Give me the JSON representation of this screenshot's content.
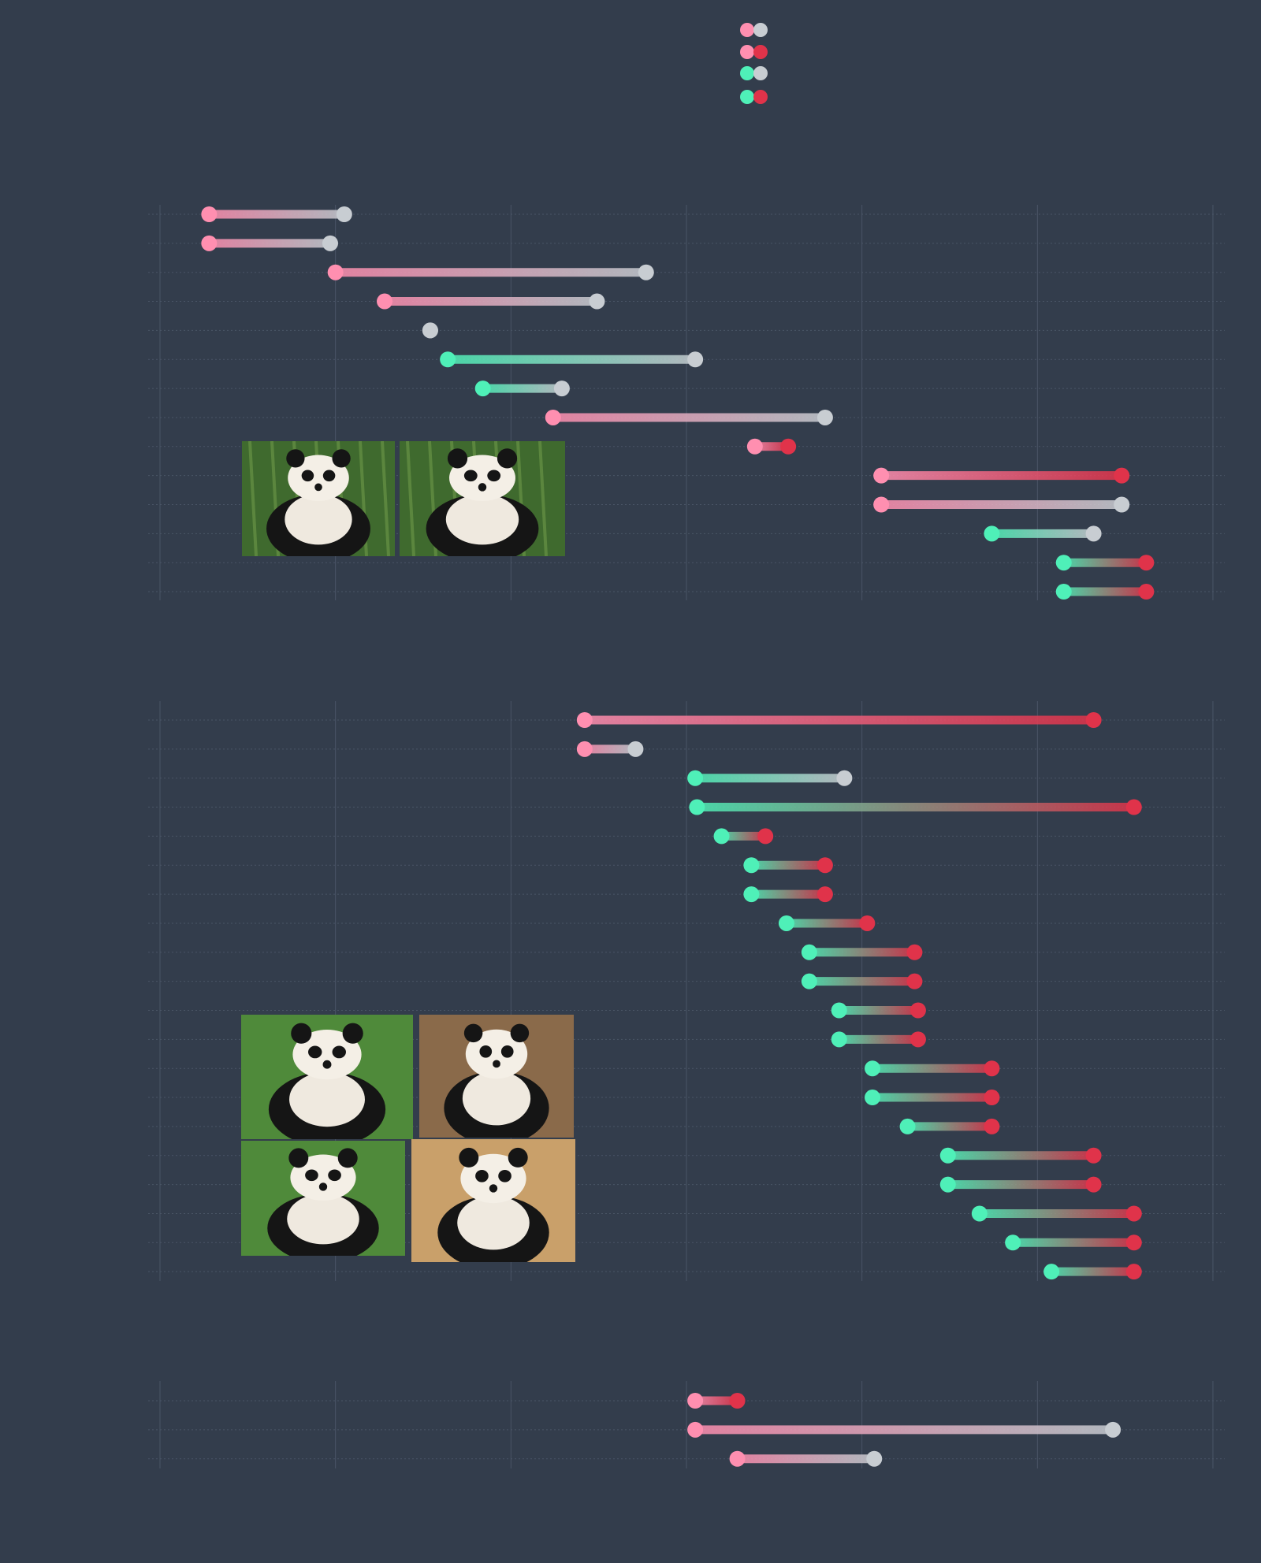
{
  "colors": {
    "background": "#333d4c",
    "grid": "#4a5566",
    "pink": "#ff8fb0",
    "mint": "#4ff0b8",
    "gray": "#c8cdd2",
    "red": "#e0334a"
  },
  "legend": [
    {
      "start": "pink",
      "end": "gray"
    },
    {
      "start": "pink",
      "end": "red"
    },
    {
      "start": "mint",
      "end": "gray"
    },
    {
      "start": "mint",
      "end": "red"
    }
  ],
  "chart_data": [
    {
      "type": "dumbbell",
      "xlim": [
        0,
        6
      ],
      "grid": true,
      "photos": [
        {
          "icon": "adult-panda-eating-bamboo-photo"
        },
        {
          "icon": "adult-panda-sitting-photo"
        }
      ],
      "rows": [
        {
          "start": 0.28,
          "end": 1.05,
          "start_color": "pink",
          "end_color": "gray"
        },
        {
          "start": 0.28,
          "end": 0.97,
          "start_color": "pink",
          "end_color": "gray"
        },
        {
          "start": 1.0,
          "end": 2.77,
          "start_color": "pink",
          "end_color": "gray"
        },
        {
          "start": 1.28,
          "end": 2.49,
          "start_color": "pink",
          "end_color": "gray"
        },
        {
          "start": 1.54,
          "end": 1.54,
          "start_color": "gray",
          "end_color": "gray"
        },
        {
          "start": 1.64,
          "end": 3.05,
          "start_color": "mint",
          "end_color": "gray"
        },
        {
          "start": 1.84,
          "end": 2.29,
          "start_color": "mint",
          "end_color": "gray"
        },
        {
          "start": 2.24,
          "end": 3.79,
          "start_color": "pink",
          "end_color": "gray"
        },
        {
          "start": 3.39,
          "end": 3.58,
          "start_color": "pink",
          "end_color": "red"
        },
        {
          "start": 4.11,
          "end": 5.48,
          "start_color": "pink",
          "end_color": "red"
        },
        {
          "start": 4.11,
          "end": 5.48,
          "start_color": "pink",
          "end_color": "gray"
        },
        {
          "start": 4.74,
          "end": 5.32,
          "start_color": "mint",
          "end_color": "gray"
        },
        {
          "start": 5.15,
          "end": 5.62,
          "start_color": "mint",
          "end_color": "red"
        },
        {
          "start": 5.15,
          "end": 5.62,
          "start_color": "mint",
          "end_color": "red"
        }
      ]
    },
    {
      "type": "dumbbell",
      "xlim": [
        0,
        6
      ],
      "grid": true,
      "photos": [
        {
          "icon": "panda-cub-walking-on-grass-photo"
        },
        {
          "icon": "panda-cub-on-swing-photo"
        },
        {
          "icon": "panda-cub-crawling-on-grass-photo"
        },
        {
          "icon": "panda-cub-on-bamboo-photo"
        }
      ],
      "rows": [
        {
          "start": 2.42,
          "end": 5.32,
          "start_color": "pink",
          "end_color": "red"
        },
        {
          "start": 2.42,
          "end": 2.71,
          "start_color": "pink",
          "end_color": "gray"
        },
        {
          "start": 3.05,
          "end": 3.9,
          "start_color": "mint",
          "end_color": "gray"
        },
        {
          "start": 3.06,
          "end": 5.55,
          "start_color": "mint",
          "end_color": "red"
        },
        {
          "start": 3.2,
          "end": 3.45,
          "start_color": "mint",
          "end_color": "red"
        },
        {
          "start": 3.37,
          "end": 3.79,
          "start_color": "mint",
          "end_color": "red"
        },
        {
          "start": 3.37,
          "end": 3.79,
          "start_color": "mint",
          "end_color": "red"
        },
        {
          "start": 3.57,
          "end": 4.03,
          "start_color": "mint",
          "end_color": "red"
        },
        {
          "start": 3.7,
          "end": 4.3,
          "start_color": "mint",
          "end_color": "red"
        },
        {
          "start": 3.7,
          "end": 4.3,
          "start_color": "mint",
          "end_color": "red"
        },
        {
          "start": 3.87,
          "end": 4.32,
          "start_color": "mint",
          "end_color": "red"
        },
        {
          "start": 3.87,
          "end": 4.32,
          "start_color": "mint",
          "end_color": "red"
        },
        {
          "start": 4.06,
          "end": 4.74,
          "start_color": "mint",
          "end_color": "red"
        },
        {
          "start": 4.06,
          "end": 4.74,
          "start_color": "mint",
          "end_color": "red"
        },
        {
          "start": 4.26,
          "end": 4.74,
          "start_color": "mint",
          "end_color": "red"
        },
        {
          "start": 4.49,
          "end": 5.32,
          "start_color": "mint",
          "end_color": "red"
        },
        {
          "start": 4.49,
          "end": 5.32,
          "start_color": "mint",
          "end_color": "red"
        },
        {
          "start": 4.67,
          "end": 5.55,
          "start_color": "mint",
          "end_color": "red"
        },
        {
          "start": 4.86,
          "end": 5.55,
          "start_color": "mint",
          "end_color": "red"
        },
        {
          "start": 5.08,
          "end": 5.55,
          "start_color": "mint",
          "end_color": "red"
        }
      ]
    },
    {
      "type": "dumbbell",
      "xlim": [
        0,
        6
      ],
      "grid": true,
      "photos": [],
      "rows": [
        {
          "start": 3.05,
          "end": 3.29,
          "start_color": "pink",
          "end_color": "red"
        },
        {
          "start": 3.05,
          "end": 5.43,
          "start_color": "pink",
          "end_color": "gray"
        },
        {
          "start": 3.29,
          "end": 4.07,
          "start_color": "pink",
          "end_color": "gray"
        }
      ]
    }
  ]
}
